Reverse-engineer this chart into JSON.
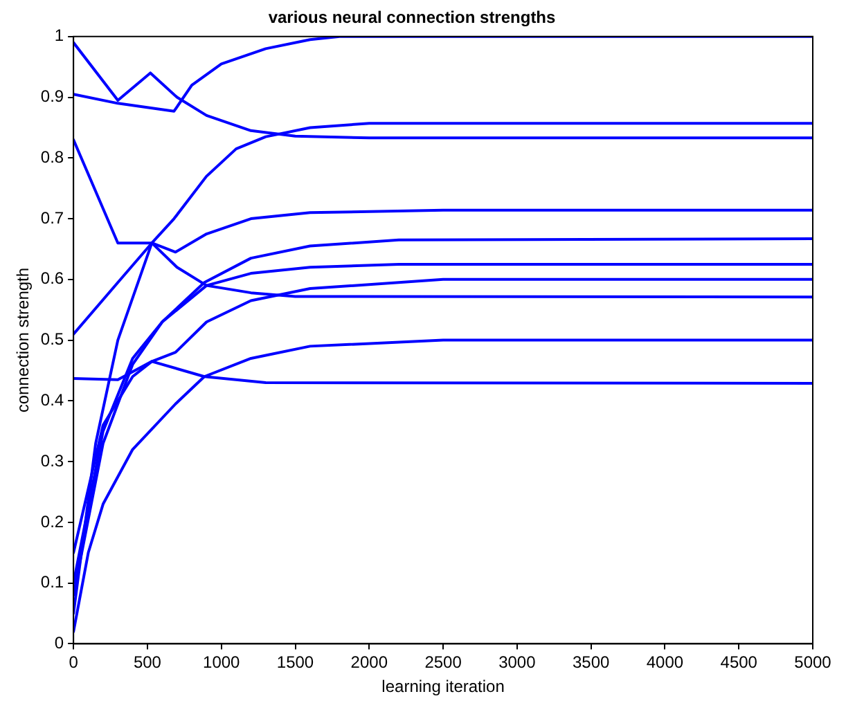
{
  "chart_data": {
    "type": "line",
    "title": "various neural connection strengths",
    "xlabel": "learning iteration",
    "ylabel": "connection strength",
    "xlim": [
      0,
      5000
    ],
    "xticks": [
      0,
      500,
      1000,
      1500,
      2000,
      2500,
      3000,
      3500,
      4000,
      4500,
      5000
    ],
    "ylim": [
      0,
      1
    ],
    "yticks": [
      0,
      0.1,
      0.2,
      0.3,
      0.4,
      0.5,
      0.6,
      0.7,
      0.8,
      0.9,
      1
    ],
    "grid": false,
    "legend": false,
    "marker": "none",
    "line_style": "solid",
    "series": [
      {
        "color": "#0000ff",
        "x": [
          0,
          300,
          520,
          700,
          900,
          1200,
          1500,
          2000,
          5000
        ],
        "values": [
          0.99,
          0.895,
          0.94,
          0.9,
          0.87,
          0.845,
          0.836,
          0.833,
          0.833
        ]
      },
      {
        "color": "#0000ff",
        "x": [
          0,
          300,
          680,
          800,
          1000,
          1300,
          1600,
          1800,
          5000
        ],
        "values": [
          0.905,
          0.89,
          0.877,
          0.92,
          0.955,
          0.98,
          0.995,
          1.0,
          1.0
        ]
      },
      {
        "color": "#0000ff",
        "x": [
          0,
          300,
          530,
          680,
          900,
          1100,
          1300,
          1600,
          2000,
          5000
        ],
        "values": [
          0.51,
          0.595,
          0.66,
          0.7,
          0.77,
          0.815,
          0.835,
          0.85,
          0.857,
          0.857
        ]
      },
      {
        "color": "#0000ff",
        "x": [
          0,
          300,
          530,
          700,
          900,
          1200,
          1500,
          5000
        ],
        "values": [
          0.83,
          0.66,
          0.66,
          0.62,
          0.59,
          0.578,
          0.572,
          0.571
        ]
      },
      {
        "color": "#0000ff",
        "x": [
          0,
          150,
          300,
          530,
          690,
          900,
          1200,
          1600,
          2500,
          5000
        ],
        "values": [
          0.05,
          0.33,
          0.5,
          0.66,
          0.645,
          0.675,
          0.7,
          0.71,
          0.714,
          0.714
        ]
      },
      {
        "color": "#0000ff",
        "x": [
          0,
          200,
          400,
          600,
          885,
          1200,
          1600,
          2200,
          5000
        ],
        "values": [
          0.1,
          0.35,
          0.47,
          0.53,
          0.595,
          0.635,
          0.655,
          0.665,
          0.667
        ]
      },
      {
        "color": "#0000ff",
        "x": [
          0,
          200,
          400,
          600,
          900,
          1200,
          1600,
          2200,
          5000
        ],
        "values": [
          0.08,
          0.33,
          0.46,
          0.53,
          0.59,
          0.61,
          0.62,
          0.625,
          0.625
        ]
      },
      {
        "color": "#0000ff",
        "x": [
          0,
          200,
          400,
          530,
          690,
          900,
          1200,
          1600,
          2500,
          5000
        ],
        "values": [
          0.15,
          0.36,
          0.44,
          0.465,
          0.48,
          0.53,
          0.565,
          0.585,
          0.6,
          0.6
        ]
      },
      {
        "color": "#0000ff",
        "x": [
          0,
          100,
          200,
          400,
          690,
          885,
          1200,
          1600,
          2500,
          5000
        ],
        "values": [
          0.02,
          0.15,
          0.23,
          0.32,
          0.395,
          0.44,
          0.47,
          0.49,
          0.5,
          0.5
        ]
      },
      {
        "color": "#0000ff",
        "x": [
          0,
          300,
          530,
          885,
          1300,
          5000
        ],
        "values": [
          0.437,
          0.435,
          0.465,
          0.44,
          0.43,
          0.429
        ]
      }
    ]
  }
}
